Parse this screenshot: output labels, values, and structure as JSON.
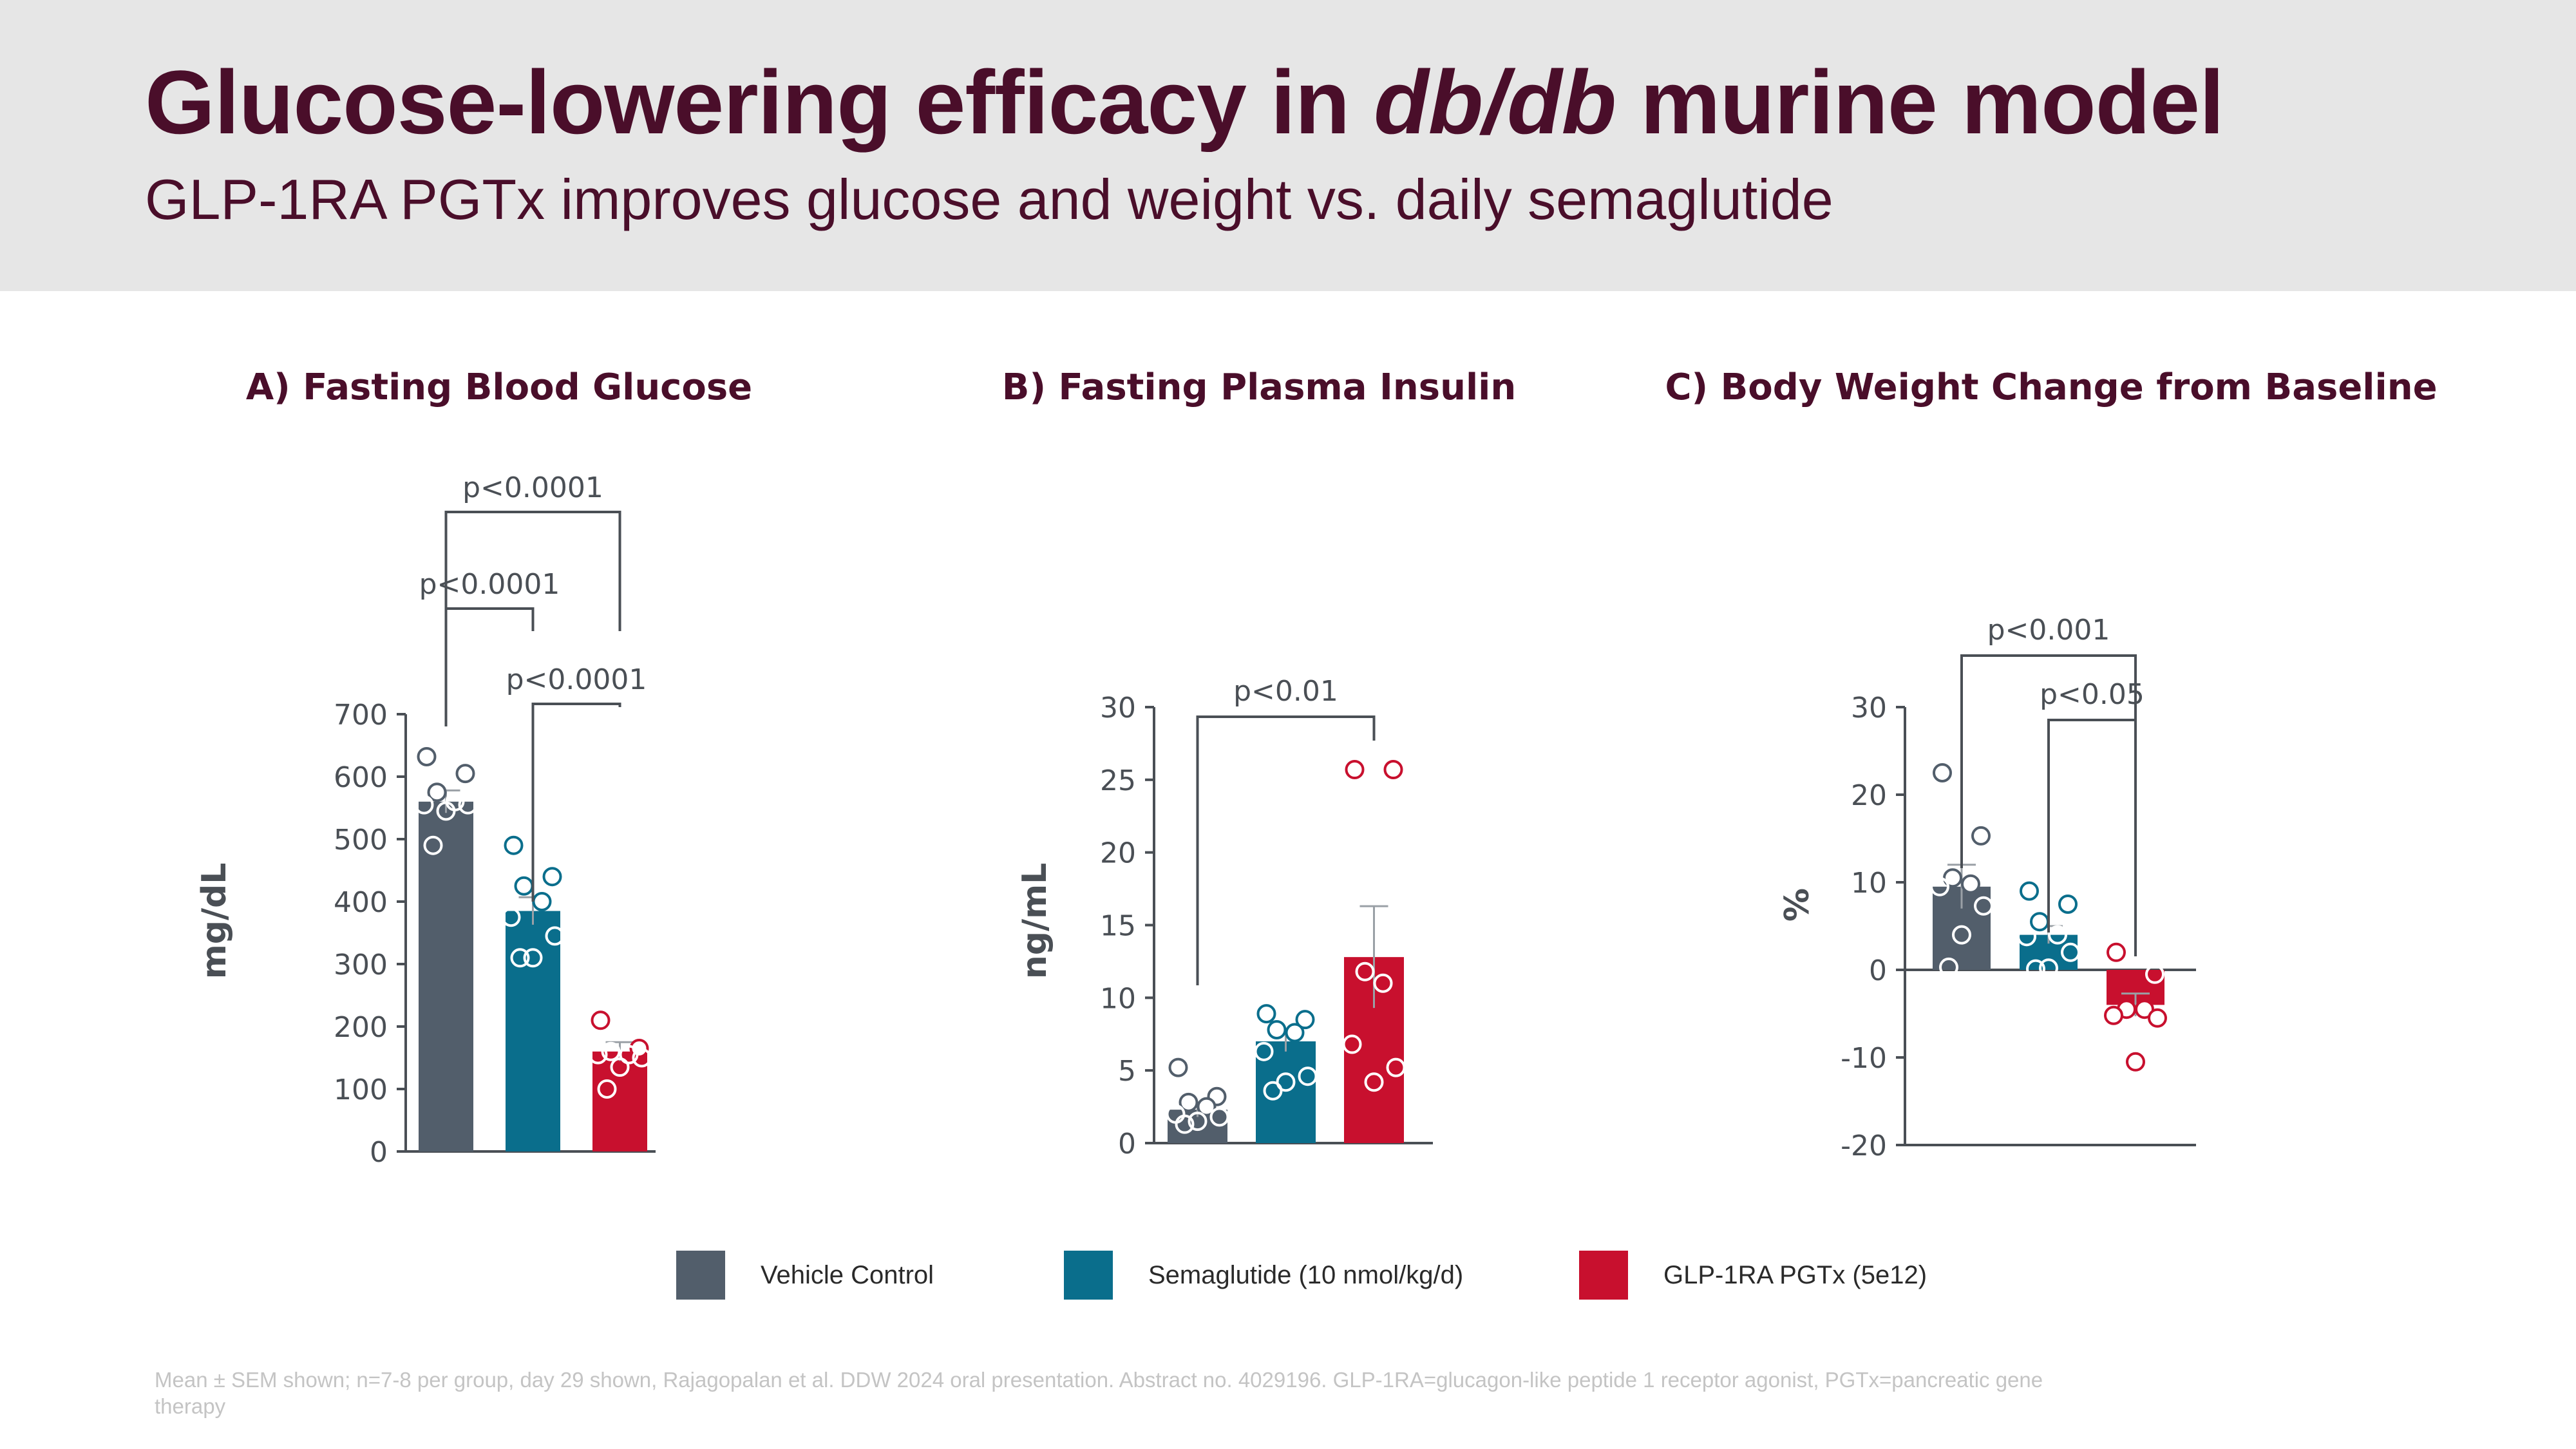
{
  "header": {
    "title_part1": "Glucose-lowering efficacy in ",
    "title_italic": "db/db",
    "title_part2": " murine model",
    "subtitle": "GLP-1RA PGTx improves glucose and weight vs. daily semaglutide"
  },
  "colors": {
    "vehicle": "#525e6b",
    "semaglutide": "#0a6e8c",
    "pgtx": "#c8102e",
    "title": "#4a0e2a",
    "axis": "#4a4f55"
  },
  "chart_data": [
    {
      "type": "bar",
      "title": "A) Fasting Blood Glucose",
      "ylabel": "mg/dL",
      "xlabel": "",
      "ylim": [
        0,
        700
      ],
      "yticks": [
        0,
        100,
        200,
        300,
        400,
        500,
        600,
        700
      ],
      "categories": [
        "Vehicle Control",
        "Semaglutide (10 nmol/kg/d)",
        "GLP-1RA PGTx (5e12)"
      ],
      "values": [
        560,
        385,
        160
      ],
      "sem": [
        18,
        22,
        15
      ],
      "points": [
        [
          632,
          605,
          575,
          560,
          555,
          555,
          545,
          490
        ],
        [
          490,
          440,
          425,
          400,
          375,
          345,
          310,
          310
        ],
        [
          210,
          165,
          160,
          155,
          155,
          150,
          135,
          100
        ]
      ],
      "annotations": [
        {
          "from": 0,
          "to": 2,
          "label": "p<0.0001"
        },
        {
          "from": 0,
          "to": 1,
          "label": "p<0.0001"
        },
        {
          "from": 1,
          "to": 2,
          "label": "p<0.0001"
        }
      ]
    },
    {
      "type": "bar",
      "title": "B) Fasting Plasma Insulin",
      "ylabel": "ng/mL",
      "xlabel": "",
      "ylim": [
        0,
        30
      ],
      "yticks": [
        0,
        5,
        10,
        15,
        20,
        25,
        30
      ],
      "categories": [
        "Vehicle Control",
        "Semaglutide (10 nmol/kg/d)",
        "GLP-1RA PGTx (5e12)"
      ],
      "values": [
        2.3,
        7.0,
        12.8
      ],
      "sem": [
        0.5,
        0.7,
        3.5
      ],
      "points": [
        [
          5.2,
          3.2,
          2.8,
          2.5,
          2.0,
          1.8,
          1.5,
          1.3
        ],
        [
          8.9,
          8.5,
          7.8,
          7.6,
          6.3,
          4.6,
          4.2,
          3.6
        ],
        [
          25.7,
          25.7,
          11.8,
          11.0,
          6.8,
          5.2,
          4.2
        ]
      ],
      "annotations": [
        {
          "from": 0,
          "to": 2,
          "label": "p<0.01"
        }
      ]
    },
    {
      "type": "bar",
      "title": "C) Body Weight Change from Baseline",
      "ylabel": "%",
      "xlabel": "",
      "ylim": [
        -20,
        30
      ],
      "yticks": [
        -20,
        -10,
        0,
        10,
        20,
        30
      ],
      "categories": [
        "Vehicle Control",
        "Semaglutide (10 nmol/kg/d)",
        "GLP-1RA PGTx (5e12)"
      ],
      "values": [
        9.5,
        4.0,
        -4.0
      ],
      "sem": [
        2.5,
        1.0,
        1.3
      ],
      "points": [
        [
          22.5,
          15.3,
          10.5,
          9.8,
          9.5,
          7.3,
          4.0,
          0.3
        ],
        [
          9.0,
          7.5,
          5.5,
          4.0,
          3.8,
          2.0,
          0.2,
          0.1
        ],
        [
          2.0,
          -0.5,
          -4.5,
          -4.5,
          -5.2,
          -5.5,
          -10.5
        ]
      ],
      "annotations": [
        {
          "from": 0,
          "to": 2,
          "label": "p<0.001"
        },
        {
          "from": 1,
          "to": 2,
          "label": "p<0.05"
        }
      ]
    }
  ],
  "legend": [
    {
      "label": "Vehicle Control",
      "color": "#525e6b"
    },
    {
      "label": "Semaglutide (10 nmol/kg/d)",
      "color": "#0a6e8c"
    },
    {
      "label": "GLP-1RA PGTx (5e12)",
      "color": "#c8102e"
    }
  ],
  "footnote": "Mean ± SEM shown; n=7-8 per group, day 29 shown, Rajagopalan et al. DDW 2024 oral presentation. Abstract no. 4029196. GLP-1RA=glucagon-like peptide 1 receptor agonist, PGTx=pancreatic gene therapy"
}
